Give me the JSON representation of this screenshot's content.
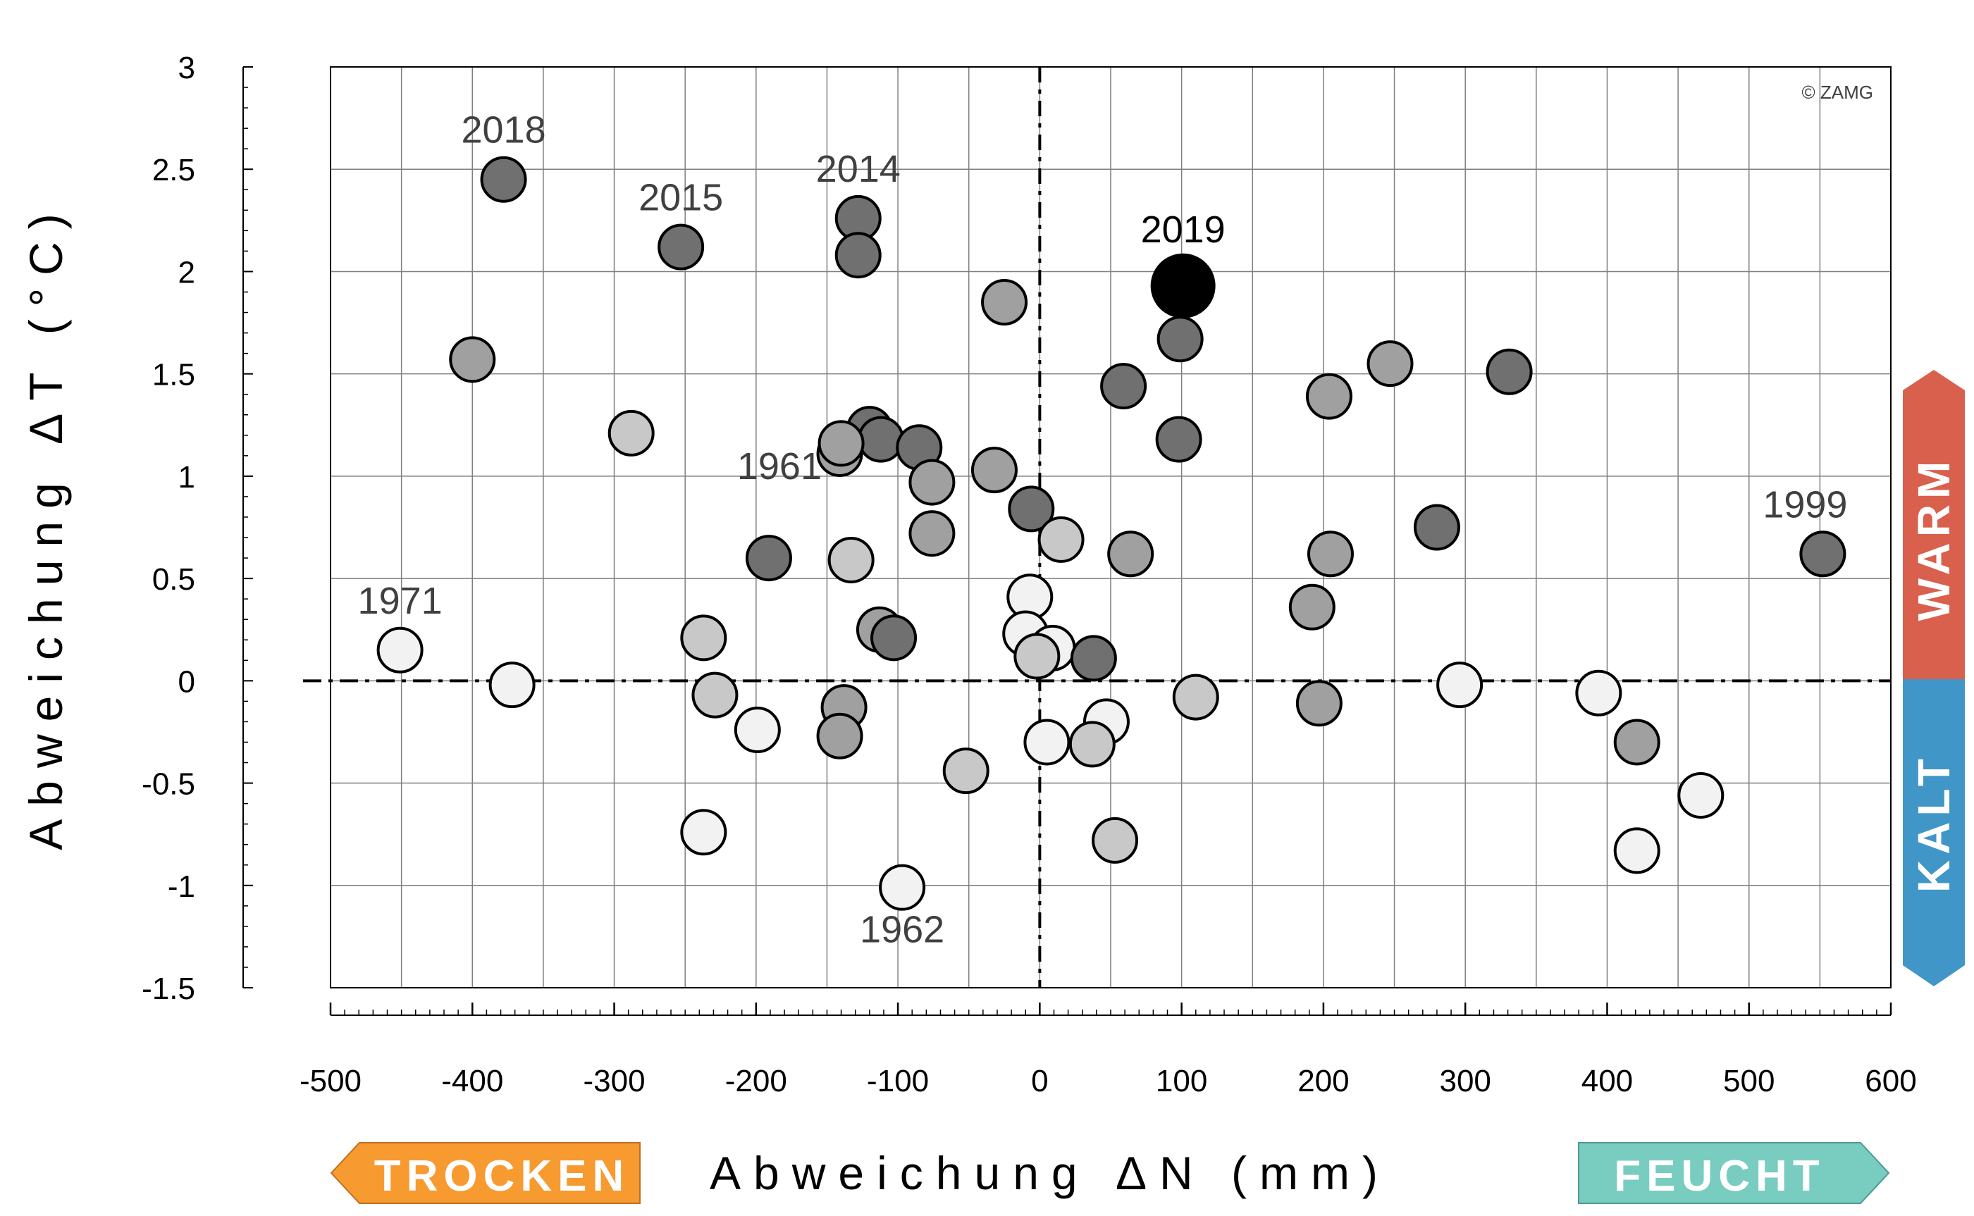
{
  "copyright": "© ZAMG",
  "indicators": {
    "warm": {
      "label": "WARM",
      "color": "#d9604c"
    },
    "kalt": {
      "label": "KALT",
      "color": "#4196c8"
    },
    "trocken": {
      "label": "TROCKEN",
      "color": "#f79a30"
    },
    "feucht": {
      "label": "FEUCHT",
      "color": "#79ccc0"
    }
  },
  "chart_data": {
    "type": "scatter",
    "title": "",
    "xlabel": "Abweichung  ΔN  (mm)",
    "ylabel": "Abweichung  ΔT  (°C)",
    "xlim": [
      -500,
      600
    ],
    "ylim": [
      -1.5,
      3
    ],
    "xticks": [
      "-500",
      "-400",
      "-300",
      "-200",
      "-100",
      "0",
      "100",
      "200",
      "300",
      "400",
      "500",
      "600"
    ],
    "yticks": [
      "3",
      "2.5",
      "2",
      "1.5",
      "1",
      "0.5",
      "0",
      "-0.5",
      "-1",
      "-1.5"
    ],
    "grid": true,
    "legend": "none",
    "shade_colors": {
      "light": "#f2f2f2",
      "mid": "#c8c8c8",
      "grey": "#a0a0a0",
      "dark": "#707070",
      "highlight": "#000000"
    },
    "points": [
      {
        "x": -378,
        "y": 2.45,
        "shade": "dark",
        "label": "2018"
      },
      {
        "x": -253,
        "y": 2.12,
        "shade": "dark",
        "label": "2015"
      },
      {
        "x": -128,
        "y": 2.26,
        "shade": "dark",
        "label": "2014"
      },
      {
        "x": -128,
        "y": 2.08,
        "shade": "dark"
      },
      {
        "x": 101,
        "y": 1.93,
        "shade": "highlight",
        "label": "2019"
      },
      {
        "x": -25,
        "y": 1.85,
        "shade": "grey"
      },
      {
        "x": 99,
        "y": 1.67,
        "shade": "dark"
      },
      {
        "x": -400,
        "y": 1.57,
        "shade": "grey"
      },
      {
        "x": 247,
        "y": 1.55,
        "shade": "grey"
      },
      {
        "x": 331,
        "y": 1.51,
        "shade": "dark"
      },
      {
        "x": 59,
        "y": 1.44,
        "shade": "dark"
      },
      {
        "x": 204,
        "y": 1.39,
        "shade": "grey"
      },
      {
        "x": -288,
        "y": 1.21,
        "shade": "mid"
      },
      {
        "x": -120,
        "y": 1.23,
        "shade": "dark"
      },
      {
        "x": -112,
        "y": 1.18,
        "shade": "dark"
      },
      {
        "x": 98,
        "y": 1.18,
        "shade": "dark"
      },
      {
        "x": -141,
        "y": 1.11,
        "shade": "grey"
      },
      {
        "x": -140,
        "y": 1.16,
        "shade": "grey"
      },
      {
        "x": -85,
        "y": 1.14,
        "shade": "dark"
      },
      {
        "x": -32,
        "y": 1.03,
        "shade": "grey"
      },
      {
        "x": -76,
        "y": 0.97,
        "shade": "grey"
      },
      {
        "x": -6,
        "y": 0.84,
        "shade": "dark"
      },
      {
        "x": 280,
        "y": 0.75,
        "shade": "dark"
      },
      {
        "x": -76,
        "y": 0.72,
        "shade": "grey"
      },
      {
        "x": 15,
        "y": 0.69,
        "shade": "mid"
      },
      {
        "x": 64,
        "y": 0.62,
        "shade": "grey"
      },
      {
        "x": 205,
        "y": 0.62,
        "shade": "grey"
      },
      {
        "x": 552,
        "y": 0.62,
        "shade": "dark",
        "label": "1999"
      },
      {
        "x": -191,
        "y": 0.6,
        "shade": "dark",
        "label": "1961"
      },
      {
        "x": -133,
        "y": 0.59,
        "shade": "mid"
      },
      {
        "x": -7,
        "y": 0.41,
        "shade": "light"
      },
      {
        "x": 192,
        "y": 0.36,
        "shade": "grey"
      },
      {
        "x": -113,
        "y": 0.25,
        "shade": "grey"
      },
      {
        "x": -10,
        "y": 0.23,
        "shade": "light"
      },
      {
        "x": -237,
        "y": 0.21,
        "shade": "mid"
      },
      {
        "x": -103,
        "y": 0.21,
        "shade": "dark"
      },
      {
        "x": 9,
        "y": 0.16,
        "shade": "light"
      },
      {
        "x": -451,
        "y": 0.15,
        "shade": "light",
        "label": "1971"
      },
      {
        "x": -2,
        "y": 0.12,
        "shade": "mid"
      },
      {
        "x": 38,
        "y": 0.11,
        "shade": "dark"
      },
      {
        "x": -372,
        "y": -0.02,
        "shade": "light"
      },
      {
        "x": 296,
        "y": -0.02,
        "shade": "light"
      },
      {
        "x": 394,
        "y": -0.06,
        "shade": "light"
      },
      {
        "x": -229,
        "y": -0.07,
        "shade": "mid"
      },
      {
        "x": 110,
        "y": -0.08,
        "shade": "mid"
      },
      {
        "x": 197,
        "y": -0.11,
        "shade": "grey"
      },
      {
        "x": -138,
        "y": -0.13,
        "shade": "grey"
      },
      {
        "x": 47,
        "y": -0.2,
        "shade": "light"
      },
      {
        "x": -199,
        "y": -0.24,
        "shade": "light"
      },
      {
        "x": -141,
        "y": -0.27,
        "shade": "grey"
      },
      {
        "x": 5,
        "y": -0.3,
        "shade": "light"
      },
      {
        "x": 37,
        "y": -0.31,
        "shade": "mid"
      },
      {
        "x": 421,
        "y": -0.3,
        "shade": "grey"
      },
      {
        "x": -52,
        "y": -0.44,
        "shade": "mid"
      },
      {
        "x": 466,
        "y": -0.56,
        "shade": "light"
      },
      {
        "x": -237,
        "y": -0.74,
        "shade": "light"
      },
      {
        "x": 53,
        "y": -0.78,
        "shade": "mid"
      },
      {
        "x": 421,
        "y": -0.83,
        "shade": "light"
      },
      {
        "x": -97,
        "y": -1.01,
        "shade": "light",
        "label": "1962"
      }
    ]
  }
}
